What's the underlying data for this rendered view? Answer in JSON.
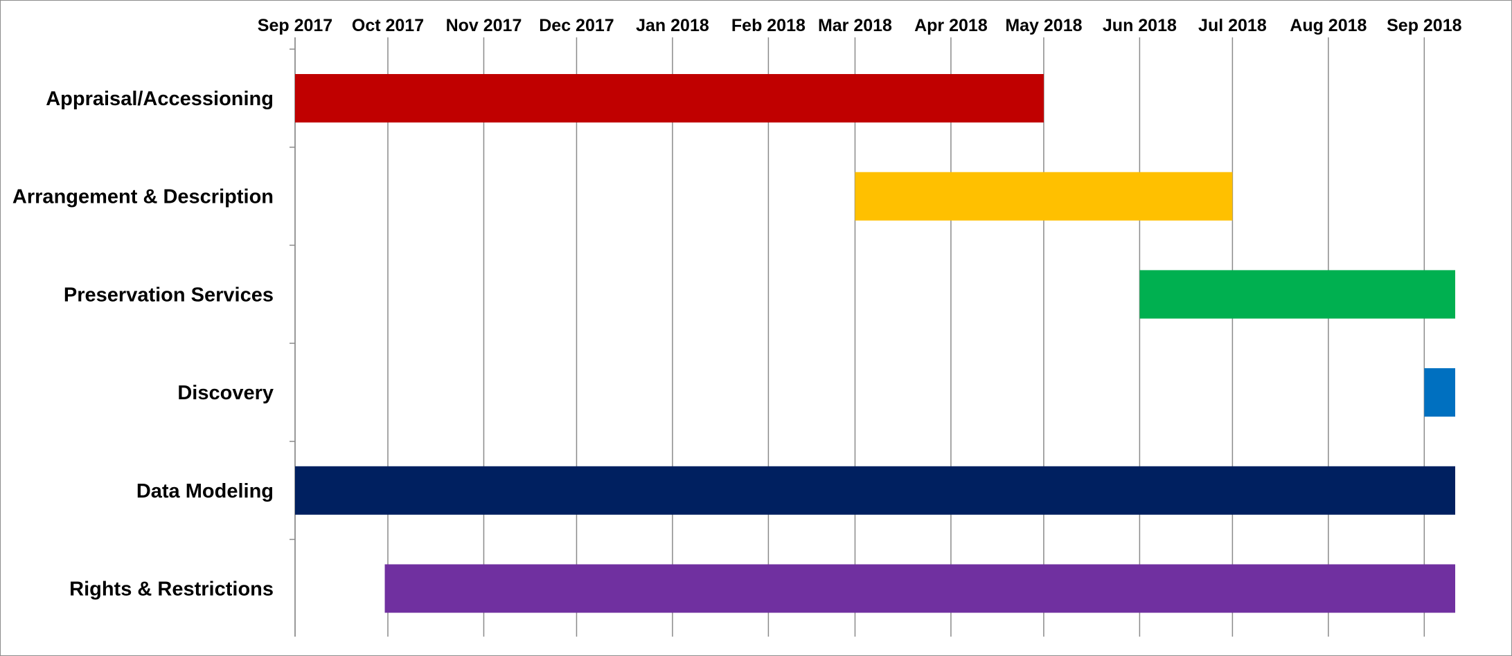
{
  "chart_data": {
    "type": "gantt",
    "title": "",
    "xlabel": "",
    "ylabel": "",
    "x_ticks": [
      "Sep 2017",
      "Oct 2017",
      "Nov 2017",
      "Dec 2017",
      "Jan 2018",
      "Feb 2018",
      "Mar 2018",
      "Apr 2018",
      "May 2018",
      "Jun 2018",
      "Jul 2018",
      "Aug 2018",
      "Sep 2018"
    ],
    "x_axis_position": "top",
    "xlim": [
      "2017-09-01",
      "2018-09-11"
    ],
    "grid": {
      "vertical": true,
      "horizontal": false
    },
    "legend": "none",
    "tasks": [
      {
        "name": "Appraisal/Accessioning",
        "start": "2017-09-01",
        "end": "2018-05-01",
        "color": "#c00000"
      },
      {
        "name": "Arrangement & Description",
        "start": "2018-03-01",
        "end": "2018-07-01",
        "color": "#ffc000"
      },
      {
        "name": "Preservation Services",
        "start": "2018-06-01",
        "end": "2018-09-11",
        "color": "#00b050"
      },
      {
        "name": "Discovery",
        "start": "2018-09-01",
        "end": "2018-09-11",
        "color": "#0070c0"
      },
      {
        "name": "Data Modeling",
        "start": "2017-09-01",
        "end": "2018-09-11",
        "color": "#002060"
      },
      {
        "name": "Rights & Restrictions",
        "start": "2017-09-30",
        "end": "2018-09-11",
        "color": "#7030a0"
      }
    ]
  }
}
